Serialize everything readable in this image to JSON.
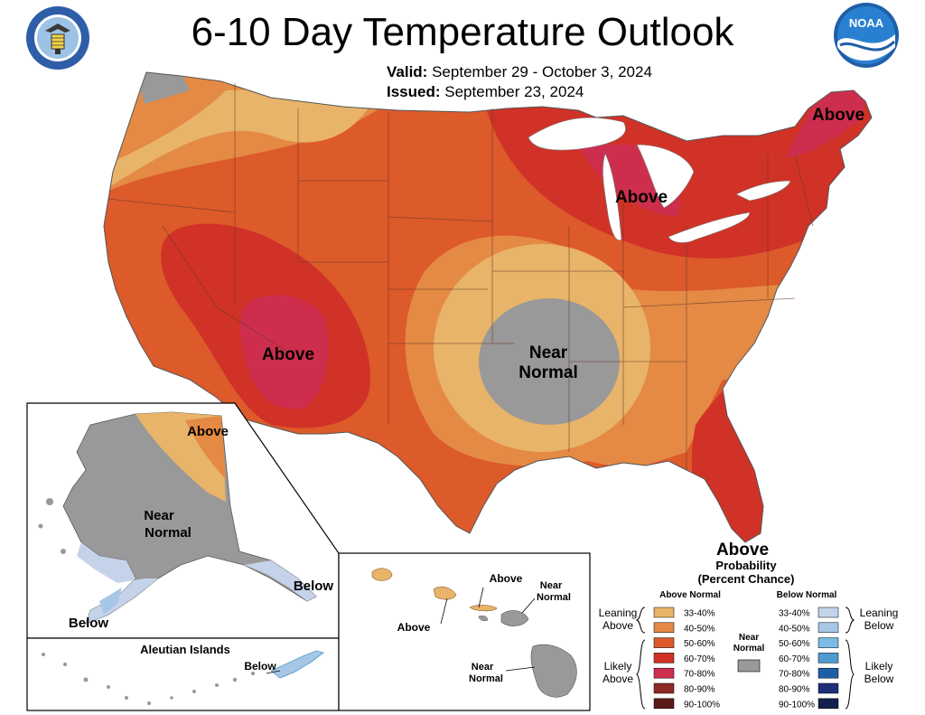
{
  "header": {
    "title": "6-10 Day Temperature Outlook",
    "valid_label": "Valid:",
    "valid_value": "September 29 - October 3, 2024",
    "issued_label": "Issued:",
    "issued_value": "September 23, 2024",
    "left_logo_icon": "department-of-commerce-seal-icon",
    "right_logo_text": "NOAA",
    "right_logo_icon": "noaa-logo-icon"
  },
  "map": {
    "conus_labels": {
      "northeast": "Above",
      "great_lakes": "Above",
      "southwest": "Above",
      "central_1": "Near",
      "central_2": "Normal",
      "southeast": "Above"
    },
    "alaska_labels": {
      "north": "Above",
      "center_1": "Near",
      "center_2": "Normal",
      "southeast": "Below",
      "southwest": "Below"
    },
    "aleutian": {
      "title": "Aleutian Islands",
      "label": "Below"
    },
    "hawaii_labels": {
      "above_top": "Above",
      "above_left": "Above",
      "near_normal_top_1": "Near",
      "near_normal_top_2": "Normal",
      "near_normal_bottom_1": "Near",
      "near_normal_bottom_2": "Normal"
    }
  },
  "legend": {
    "title_1": "Probability",
    "title_2": "(Percent Chance)",
    "above_header": "Above Normal",
    "below_header": "Below Normal",
    "near_normal_1": "Near",
    "near_normal_2": "Normal",
    "near_normal_color": "#999999",
    "leaning_above_1": "Leaning",
    "leaning_above_2": "Above",
    "likely_above_1": "Likely",
    "likely_above_2": "Above",
    "leaning_below_1": "Leaning",
    "leaning_below_2": "Below",
    "likely_below_1": "Likely",
    "likely_below_2": "Below",
    "ranges": [
      "33-40%",
      "40-50%",
      "50-60%",
      "60-70%",
      "70-80%",
      "80-90%",
      "90-100%"
    ],
    "above_colors": [
      "#E8B46A",
      "#E48A45",
      "#DD5A2B",
      "#D03227",
      "#CE2E4D",
      "#8E2A25",
      "#5A1A18"
    ],
    "below_colors": [
      "#C5D3EA",
      "#A6C7E5",
      "#7BBBE5",
      "#4F9ACF",
      "#1D5FA6",
      "#1E2F78",
      "#14204C"
    ]
  }
}
